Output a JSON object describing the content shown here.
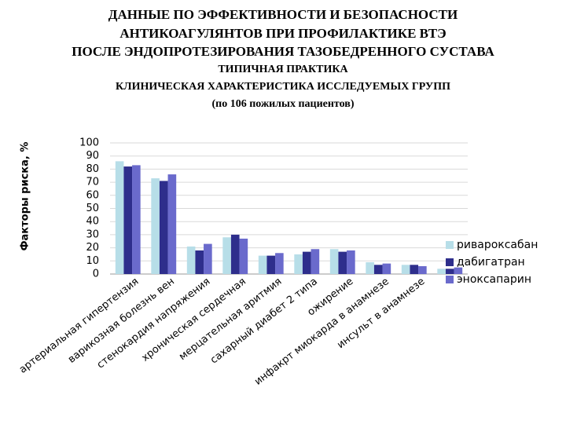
{
  "chart_data": {
    "type": "bar",
    "title": [
      "ДАННЫЕ ПО ЭФФЕКТИВНОСТИ И БЕЗОПАСНОСТИ",
      "АНТИКОАГУЛЯНТОВ ПРИ ПРОФИЛАКТИКЕ ВТЭ",
      "ПОСЛЕ ЭНДОПРОТЕЗИРОВАНИЯ ТАЗОБЕДРЕННОГО СУСТАВА"
    ],
    "subtitle": [
      "ТИПИЧНАЯ ПРАКТИКА",
      "КЛИНИЧЕСКАЯ ХАРАКТЕРИСТИКА ИССЛЕДУЕМЫХ ГРУПП",
      "(по 106 пожилых пациентов)"
    ],
    "ylabel": "Факторы риска, %",
    "categories": [
      "артериальная гипертензия",
      "варикозная болезнь вен",
      "стенокардия напряжения",
      "хроническая сердечная",
      "мерцательная аритмия",
      "сахарный диабет 2 типа",
      "ожирение",
      "инфакрт миокарда в анамнезе",
      "инсульт в анамнезе",
      null
    ],
    "series": [
      {
        "name": "ривароксабан",
        "color": "#b7dee8",
        "values": [
          86,
          73,
          21,
          28,
          14,
          15,
          19,
          9,
          7,
          4
        ]
      },
      {
        "name": "дабигатран",
        "color": "#2e2e8c",
        "values": [
          82,
          71,
          18,
          30,
          14,
          17,
          17,
          7,
          7,
          4
        ]
      },
      {
        "name": "эноксапарин",
        "color": "#6a6acc",
        "values": [
          83,
          76,
          23,
          27,
          16,
          19,
          18,
          8,
          6,
          5
        ]
      }
    ],
    "ylim": [
      0,
      100
    ],
    "yticks": [
      0,
      10,
      20,
      30,
      40,
      50,
      60,
      70,
      80,
      90,
      100
    ],
    "grid": true,
    "legend": "right"
  }
}
